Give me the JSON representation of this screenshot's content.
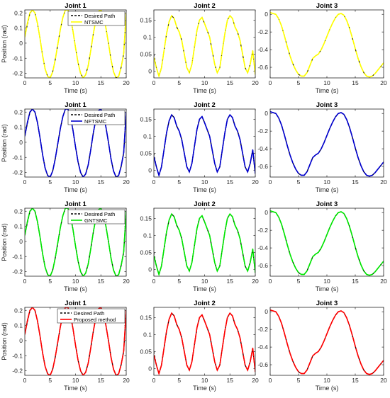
{
  "figure": {
    "rows": [
      {
        "controller": "NTSMC",
        "color": "#ffff00"
      },
      {
        "controller": "NFTSMC",
        "color": "#0000cc"
      },
      {
        "controller": "GNTSMC",
        "color": "#00e600"
      },
      {
        "controller": "Proposed method",
        "color": "#ff0000"
      }
    ],
    "desired_label": "Desired Path",
    "desired_color": "#000000"
  },
  "chart_data": [
    {
      "type": "line",
      "title": "Joint 1",
      "xlabel": "Time (s)",
      "ylabel": "Position (rad)",
      "xlim": [
        0,
        20
      ],
      "ylim": [
        -0.23,
        0.22
      ],
      "xticks": [
        0,
        5,
        10,
        15,
        20
      ],
      "yticks": [
        -0.2,
        -0.1,
        0,
        0.1,
        0.2
      ],
      "ytick_labels": [
        "-0.2",
        "-0.1",
        "0",
        "0.1",
        "0.2"
      ],
      "x": [
        0,
        0.5,
        1,
        1.5,
        2,
        2.5,
        3,
        3.5,
        4,
        4.5,
        5,
        5.5,
        6,
        6.5,
        7,
        7.5,
        8,
        8.5,
        9,
        9.5,
        10,
        10.5,
        11,
        11.5,
        12,
        12.5,
        13,
        13.5,
        14,
        14.5,
        15,
        15.5,
        16,
        16.5,
        17,
        17.5,
        18,
        18.5,
        19,
        19.5,
        20
      ],
      "desired": [
        0.05,
        0.12,
        0.195,
        0.22,
        0.2,
        0.13,
        0.03,
        -0.08,
        -0.17,
        -0.22,
        -0.23,
        -0.19,
        -0.11,
        -0.01,
        0.09,
        0.17,
        0.22,
        0.22,
        0.17,
        0.08,
        -0.03,
        -0.13,
        -0.2,
        -0.23,
        -0.21,
        -0.15,
        -0.05,
        0.06,
        0.15,
        0.21,
        0.22,
        0.18,
        0.1,
        0,
        -0.11,
        -0.19,
        -0.23,
        -0.22,
        -0.16,
        -0.07,
        0.2
      ],
      "series": [
        {
          "name": "NTSMC",
          "values": [
            0.04,
            0.13,
            0.2,
            0.22,
            0.2,
            0.13,
            0.03,
            -0.08,
            -0.17,
            -0.22,
            -0.23,
            -0.19,
            -0.11,
            -0.01,
            0.09,
            0.17,
            0.22,
            0.22,
            0.17,
            0.08,
            -0.03,
            -0.13,
            -0.2,
            -0.23,
            -0.21,
            -0.15,
            -0.05,
            0.06,
            0.15,
            0.21,
            0.22,
            0.18,
            0.1,
            0,
            -0.11,
            -0.19,
            -0.23,
            -0.22,
            -0.16,
            -0.07,
            0.2
          ]
        },
        {
          "name": "NFTSMC",
          "values": [
            0.04,
            0.13,
            0.2,
            0.22,
            0.2,
            0.13,
            0.03,
            -0.08,
            -0.17,
            -0.22,
            -0.23,
            -0.19,
            -0.11,
            -0.01,
            0.09,
            0.17,
            0.22,
            0.22,
            0.17,
            0.08,
            -0.03,
            -0.13,
            -0.2,
            -0.23,
            -0.21,
            -0.15,
            -0.05,
            0.06,
            0.15,
            0.21,
            0.22,
            0.18,
            0.1,
            0,
            -0.11,
            -0.19,
            -0.23,
            -0.22,
            -0.16,
            -0.07,
            0.2
          ]
        },
        {
          "name": "GNTSMC",
          "values": [
            0.04,
            0.13,
            0.2,
            0.22,
            0.2,
            0.13,
            0.03,
            -0.08,
            -0.17,
            -0.22,
            -0.23,
            -0.19,
            -0.11,
            -0.01,
            0.09,
            0.17,
            0.22,
            0.22,
            0.17,
            0.08,
            -0.03,
            -0.13,
            -0.2,
            -0.23,
            -0.21,
            -0.15,
            -0.05,
            0.06,
            0.15,
            0.21,
            0.22,
            0.18,
            0.1,
            0,
            -0.11,
            -0.19,
            -0.23,
            -0.22,
            -0.16,
            -0.07,
            0.2
          ]
        },
        {
          "name": "Proposed method",
          "values": [
            0.04,
            0.13,
            0.2,
            0.22,
            0.2,
            0.13,
            0.03,
            -0.08,
            -0.17,
            -0.22,
            -0.23,
            -0.19,
            -0.11,
            -0.01,
            0.09,
            0.17,
            0.22,
            0.22,
            0.17,
            0.08,
            -0.03,
            -0.13,
            -0.2,
            -0.23,
            -0.21,
            -0.15,
            -0.05,
            0.06,
            0.15,
            0.21,
            0.22,
            0.18,
            0.1,
            0,
            -0.11,
            -0.19,
            -0.23,
            -0.22,
            -0.16,
            -0.07,
            0.2
          ]
        }
      ],
      "legend": "top-right"
    },
    {
      "type": "line",
      "title": "Joint 2",
      "xlabel": "Time (s)",
      "ylabel": "",
      "xlim": [
        0,
        20
      ],
      "ylim": [
        -0.02,
        0.18
      ],
      "xticks": [
        0,
        5,
        10,
        15,
        20
      ],
      "yticks": [
        0,
        0.05,
        0.1,
        0.15
      ],
      "ytick_labels": [
        "0",
        "0.05",
        "0.1",
        "0.15"
      ],
      "x": [
        0,
        0.5,
        1,
        1.5,
        2,
        2.5,
        3,
        3.5,
        4,
        4.5,
        5,
        5.5,
        6,
        6.5,
        7,
        7.5,
        8,
        8.5,
        9,
        9.5,
        10,
        10.5,
        11,
        11.5,
        12,
        12.5,
        13,
        13.5,
        14,
        14.5,
        15,
        15.5,
        16,
        16.5,
        17,
        17.5,
        18,
        18.5,
        19,
        19.5,
        20
      ],
      "desired": [
        0.05,
        0.01,
        -0.015,
        0.01,
        0.06,
        0.11,
        0.145,
        0.163,
        0.155,
        0.13,
        0.115,
        0.09,
        0.05,
        0.01,
        -0.005,
        0.02,
        0.07,
        0.12,
        0.15,
        0.158,
        0.14,
        0.12,
        0.1,
        0.06,
        0.02,
        -0.005,
        0.01,
        0.06,
        0.11,
        0.15,
        0.163,
        0.155,
        0.13,
        0.115,
        0.09,
        0.05,
        0.01,
        -0.005,
        0.02,
        0.06,
        -0.01
      ],
      "series": [
        {
          "name": "NTSMC",
          "values": [
            0.04,
            0.01,
            -0.015,
            0.01,
            0.06,
            0.11,
            0.145,
            0.163,
            0.155,
            0.13,
            0.115,
            0.09,
            0.05,
            0.01,
            -0.005,
            0.02,
            0.07,
            0.12,
            0.15,
            0.158,
            0.14,
            0.12,
            0.1,
            0.06,
            0.02,
            -0.005,
            0.01,
            0.06,
            0.11,
            0.15,
            0.163,
            0.155,
            0.13,
            0.115,
            0.09,
            0.05,
            0.01,
            -0.005,
            0.02,
            0.06,
            -0.01
          ]
        },
        {
          "name": "NFTSMC",
          "values": [
            0.04,
            0.01,
            -0.015,
            0.01,
            0.06,
            0.11,
            0.145,
            0.163,
            0.155,
            0.13,
            0.115,
            0.09,
            0.05,
            0.01,
            -0.005,
            0.02,
            0.07,
            0.12,
            0.15,
            0.158,
            0.14,
            0.12,
            0.1,
            0.06,
            0.02,
            -0.005,
            0.01,
            0.06,
            0.11,
            0.15,
            0.163,
            0.155,
            0.13,
            0.115,
            0.09,
            0.05,
            0.01,
            -0.005,
            0.02,
            0.06,
            -0.01
          ]
        },
        {
          "name": "GNTSMC",
          "values": [
            0.04,
            0.01,
            -0.015,
            0.01,
            0.06,
            0.11,
            0.145,
            0.163,
            0.155,
            0.13,
            0.115,
            0.09,
            0.05,
            0.01,
            -0.005,
            0.02,
            0.07,
            0.12,
            0.15,
            0.158,
            0.14,
            0.12,
            0.1,
            0.06,
            0.02,
            -0.005,
            0.01,
            0.06,
            0.11,
            0.15,
            0.163,
            0.155,
            0.13,
            0.115,
            0.09,
            0.05,
            0.01,
            -0.005,
            0.02,
            0.06,
            -0.01
          ]
        },
        {
          "name": "Proposed method",
          "values": [
            0.04,
            0.01,
            -0.015,
            0.01,
            0.06,
            0.11,
            0.145,
            0.163,
            0.155,
            0.13,
            0.115,
            0.09,
            0.05,
            0.01,
            -0.005,
            0.02,
            0.07,
            0.12,
            0.15,
            0.158,
            0.14,
            0.12,
            0.1,
            0.06,
            0.02,
            -0.005,
            0.01,
            0.06,
            0.11,
            0.15,
            0.163,
            0.155,
            0.13,
            0.115,
            0.09,
            0.05,
            0.01,
            -0.005,
            0.02,
            0.06,
            -0.01
          ]
        }
      ]
    },
    {
      "type": "line",
      "title": "Joint 3",
      "xlabel": "Time (s)",
      "ylabel": "",
      "xlim": [
        0,
        20
      ],
      "ylim": [
        -0.72,
        0.05
      ],
      "xticks": [
        0,
        5,
        10,
        15,
        20
      ],
      "yticks": [
        -0.6,
        -0.4,
        -0.2,
        0
      ],
      "ytick_labels": [
        "-0.6",
        "-0.4",
        "-0.2",
        "0"
      ],
      "x": [
        0,
        0.5,
        1,
        1.5,
        2,
        2.5,
        3,
        3.5,
        4,
        4.5,
        5,
        5.5,
        6,
        6.5,
        7,
        7.5,
        8,
        8.5,
        9,
        9.5,
        10,
        10.5,
        11,
        11.5,
        12,
        12.5,
        13,
        13.5,
        14,
        14.5,
        15,
        15.5,
        16,
        16.5,
        17,
        17.5,
        18,
        18.5,
        19,
        19.5,
        20
      ],
      "desired": [
        0.02,
        0.01,
        0.0,
        -0.05,
        -0.13,
        -0.24,
        -0.36,
        -0.47,
        -0.56,
        -0.63,
        -0.68,
        -0.7,
        -0.7,
        -0.66,
        -0.58,
        -0.5,
        -0.47,
        -0.45,
        -0.4,
        -0.33,
        -0.25,
        -0.17,
        -0.1,
        -0.04,
        0.0,
        0.01,
        -0.01,
        -0.07,
        -0.16,
        -0.27,
        -0.39,
        -0.5,
        -0.59,
        -0.66,
        -0.7,
        -0.71,
        -0.7,
        -0.67,
        -0.63,
        -0.59,
        -0.55
      ],
      "series": [
        {
          "name": "NTSMC",
          "values": [
            0.02,
            0.01,
            0.0,
            -0.05,
            -0.13,
            -0.24,
            -0.36,
            -0.47,
            -0.56,
            -0.63,
            -0.68,
            -0.7,
            -0.7,
            -0.66,
            -0.58,
            -0.5,
            -0.47,
            -0.45,
            -0.4,
            -0.33,
            -0.25,
            -0.17,
            -0.1,
            -0.04,
            0.0,
            0.01,
            -0.01,
            -0.07,
            -0.16,
            -0.27,
            -0.39,
            -0.5,
            -0.59,
            -0.66,
            -0.7,
            -0.71,
            -0.7,
            -0.67,
            -0.63,
            -0.59,
            -0.55
          ]
        },
        {
          "name": "NFTSMC",
          "values": [
            0.02,
            0.01,
            0.0,
            -0.05,
            -0.13,
            -0.24,
            -0.36,
            -0.47,
            -0.56,
            -0.63,
            -0.68,
            -0.7,
            -0.7,
            -0.66,
            -0.58,
            -0.5,
            -0.47,
            -0.45,
            -0.4,
            -0.33,
            -0.25,
            -0.17,
            -0.1,
            -0.04,
            0.0,
            0.01,
            -0.01,
            -0.07,
            -0.16,
            -0.27,
            -0.39,
            -0.5,
            -0.59,
            -0.66,
            -0.7,
            -0.71,
            -0.7,
            -0.67,
            -0.63,
            -0.59,
            -0.55
          ]
        },
        {
          "name": "GNTSMC",
          "values": [
            0.02,
            0.01,
            0.0,
            -0.05,
            -0.13,
            -0.24,
            -0.36,
            -0.47,
            -0.56,
            -0.63,
            -0.68,
            -0.7,
            -0.7,
            -0.66,
            -0.58,
            -0.5,
            -0.47,
            -0.45,
            -0.4,
            -0.33,
            -0.25,
            -0.17,
            -0.1,
            -0.04,
            0.0,
            0.01,
            -0.01,
            -0.07,
            -0.16,
            -0.27,
            -0.39,
            -0.5,
            -0.59,
            -0.66,
            -0.7,
            -0.71,
            -0.7,
            -0.67,
            -0.63,
            -0.59,
            -0.55
          ]
        },
        {
          "name": "Proposed method",
          "values": [
            0.02,
            0.01,
            0.0,
            -0.05,
            -0.13,
            -0.24,
            -0.36,
            -0.47,
            -0.56,
            -0.63,
            -0.68,
            -0.7,
            -0.7,
            -0.66,
            -0.58,
            -0.5,
            -0.47,
            -0.45,
            -0.4,
            -0.33,
            -0.25,
            -0.17,
            -0.1,
            -0.04,
            0.0,
            0.01,
            -0.01,
            -0.07,
            -0.16,
            -0.27,
            -0.39,
            -0.5,
            -0.59,
            -0.66,
            -0.7,
            -0.71,
            -0.7,
            -0.67,
            -0.63,
            -0.59,
            -0.55
          ]
        }
      ]
    }
  ]
}
